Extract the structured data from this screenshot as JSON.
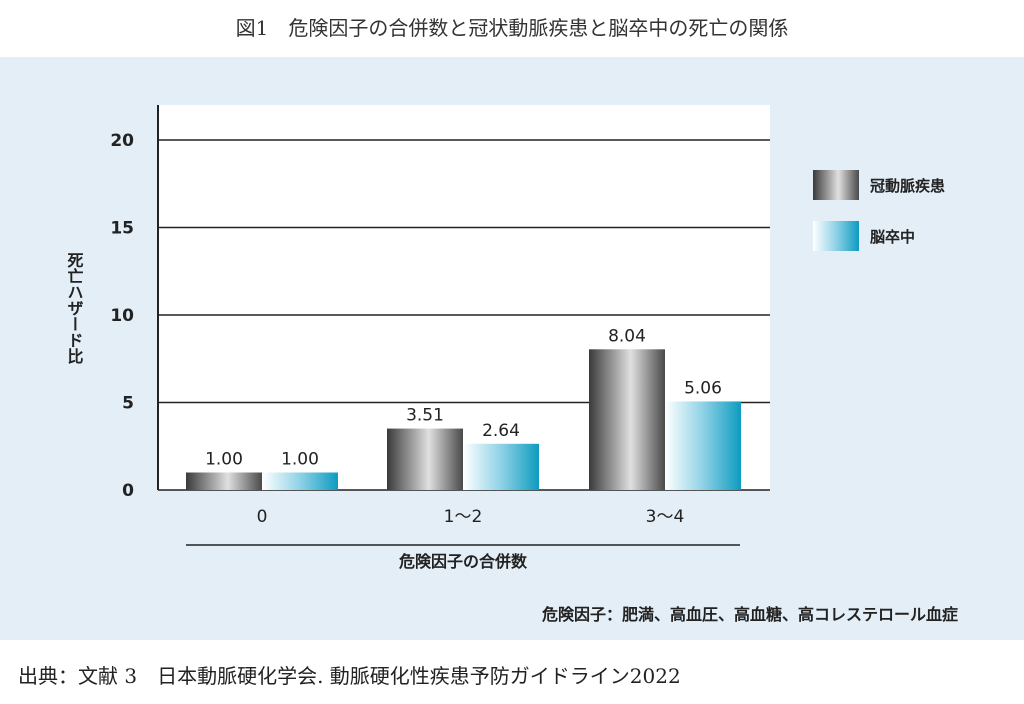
{
  "figure_title": "図1　危険因子の合併数と冠状動脈疾患と脳卒中の死亡の関係",
  "source": "出典：文献 3　日本動脈硬化学会. 動脈硬化性疾患予防ガイドライン2022",
  "colors": {
    "panel_bg": "#e3eef6",
    "plot_bg": "#ffffff",
    "series_coronary": "#6d6d6d",
    "series_stroke": "#2aa8c8"
  },
  "chart_data": {
    "type": "bar",
    "title": "",
    "xlabel": "危険因子の合併数",
    "ylabel": "死亡ハザード比",
    "categories": [
      "0",
      "1～2",
      "3～4"
    ],
    "series": [
      {
        "name": "冠動脈疾患",
        "values": [
          1.0,
          3.51,
          8.04
        ],
        "labels": [
          "1.00",
          "3.51",
          "8.04"
        ]
      },
      {
        "name": "脳卒中",
        "values": [
          1.0,
          2.64,
          5.06
        ],
        "labels": [
          "1.00",
          "2.64",
          "5.06"
        ]
      }
    ],
    "ylim": [
      0,
      22
    ],
    "yticks": [
      0,
      5,
      10,
      15,
      20
    ],
    "grid": true,
    "legend_position": "right",
    "footnote": "危険因子：肥満、高血圧、高血糖、高コレステロール血症"
  }
}
